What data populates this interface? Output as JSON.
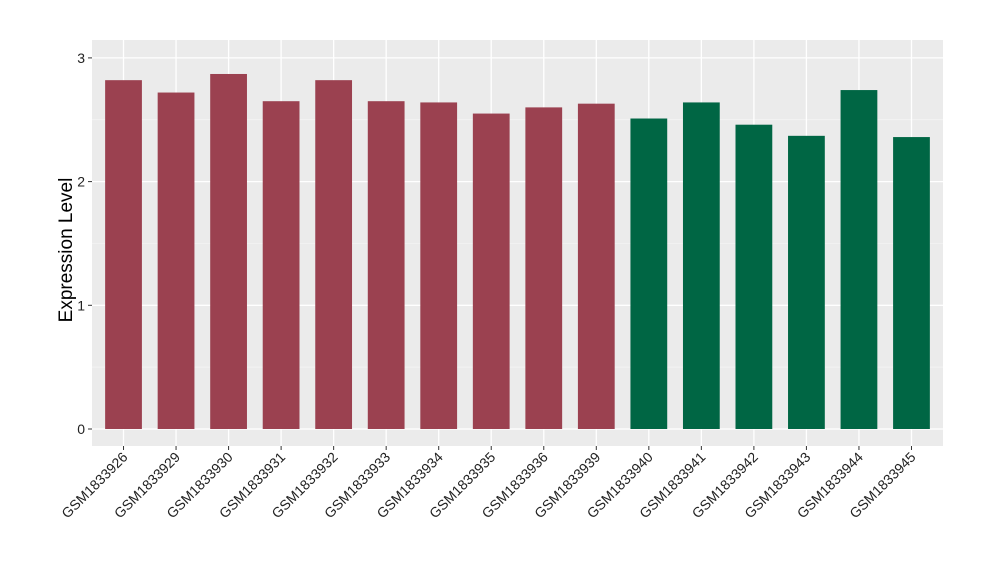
{
  "chart_data": {
    "type": "bar",
    "title": "",
    "xlabel": "",
    "ylabel": "Expression Level",
    "ylim": [
      0,
      3
    ],
    "yticks": [
      0,
      1,
      2,
      3
    ],
    "grid": true,
    "legend": "none",
    "categories": [
      "GSM1833926",
      "GSM1833929",
      "GSM1833930",
      "GSM1833931",
      "GSM1833932",
      "GSM1833933",
      "GSM1833934",
      "GSM1833935",
      "GSM1833936",
      "GSM1833939",
      "GSM1833940",
      "GSM1833941",
      "GSM1833942",
      "GSM1833943",
      "GSM1833944",
      "GSM1833945"
    ],
    "values": [
      2.82,
      2.72,
      2.87,
      2.65,
      2.82,
      2.65,
      2.64,
      2.55,
      2.6,
      2.63,
      2.51,
      2.64,
      2.46,
      2.37,
      2.74,
      2.36
    ],
    "groups": [
      0,
      0,
      0,
      0,
      0,
      0,
      0,
      0,
      0,
      0,
      1,
      1,
      1,
      1,
      1,
      1
    ],
    "group_colors": [
      "#9b4150",
      "#006644"
    ],
    "panel_background": "#ebebeb"
  }
}
